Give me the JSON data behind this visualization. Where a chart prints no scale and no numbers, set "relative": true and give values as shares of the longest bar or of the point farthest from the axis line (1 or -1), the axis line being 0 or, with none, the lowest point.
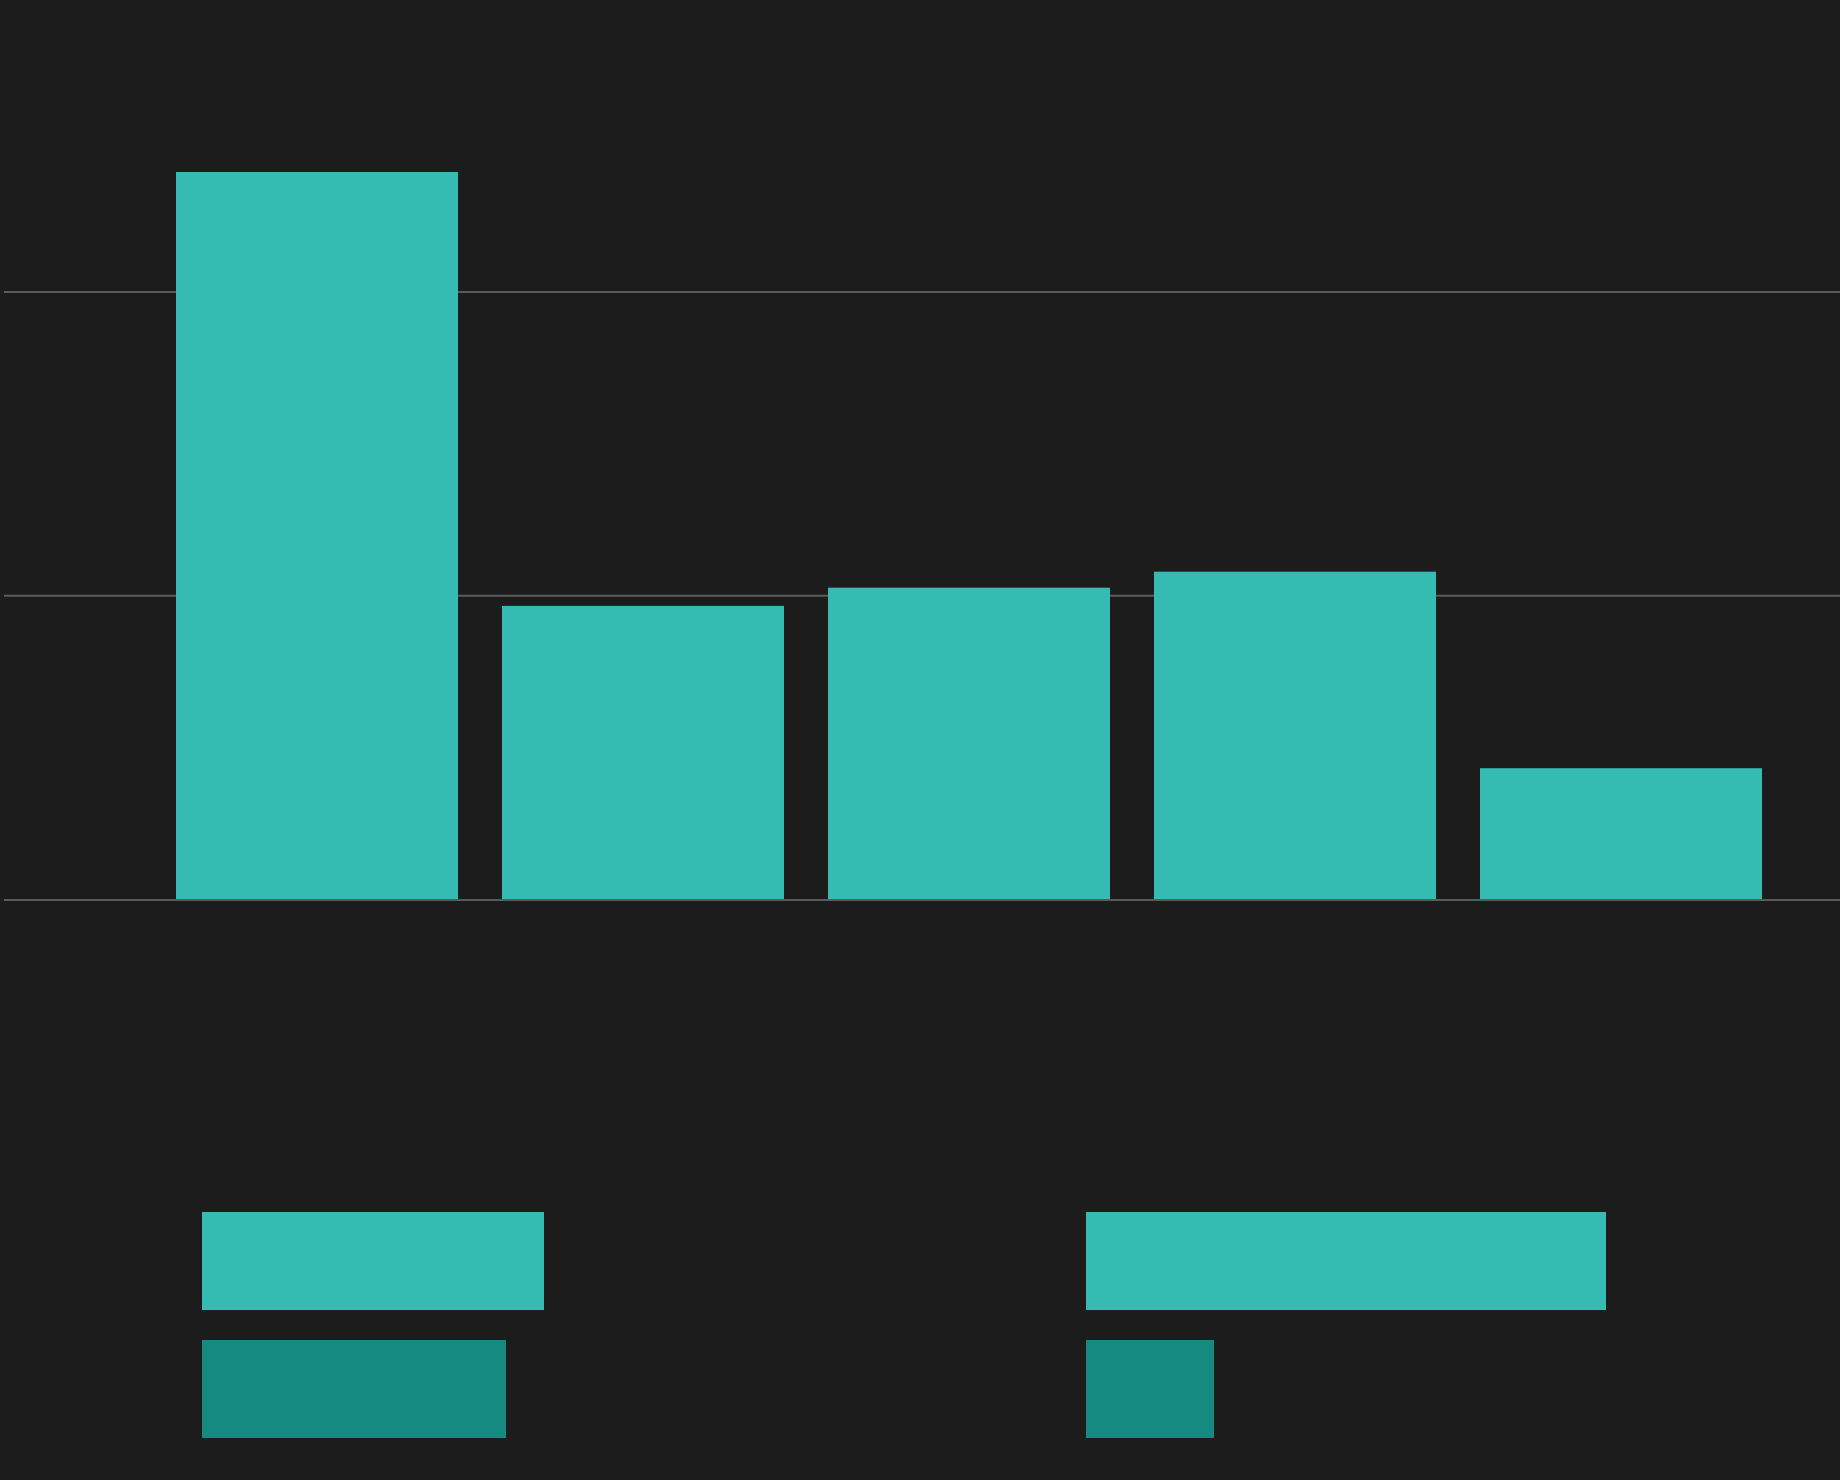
{
  "chart_data": {
    "type": "bar",
    "relative": true,
    "categories": [
      null,
      null,
      null,
      null,
      null
    ],
    "values": [
      1,
      0.404,
      0.429,
      0.451,
      0.181
    ],
    "color": "#36bbb3",
    "ref_lines": [
      {
        "axis": "y",
        "value": 0.418,
        "color": "#5a5a5a"
      },
      {
        "axis": "y",
        "value": 0.835,
        "color": "#5a5a5a"
      }
    ]
  }
}
